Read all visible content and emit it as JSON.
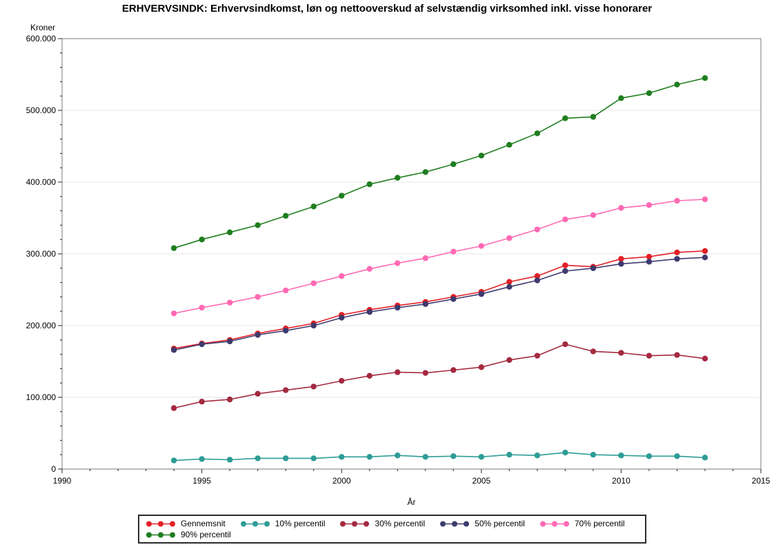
{
  "chart_data": {
    "type": "line",
    "title": "ERHVERVSINDK: Erhvervsindkomst, løn og nettooverskud af selvstændig virksomhed inkl. visse honorarer",
    "xlabel": "År",
    "ylabel": "Kroner",
    "xlim": [
      1990,
      2015
    ],
    "ylim": [
      0,
      600000
    ],
    "x_major_ticks": [
      1990,
      1995,
      2000,
      2005,
      2010,
      2015
    ],
    "x_tick_labels": [
      "1990",
      "1995",
      "2000",
      "2005",
      "2010",
      "2015"
    ],
    "x_minor_step": 1,
    "y_major_ticks": [
      0,
      100000,
      200000,
      300000,
      400000,
      500000,
      600000
    ],
    "y_tick_labels": [
      "0",
      "100.000",
      "200.000",
      "300.000",
      "400.000",
      "500.000",
      "600.000"
    ],
    "y_minor_step": 20000,
    "grid": "horizontal-major",
    "legend_position": "bottom",
    "marker": "filled-circle",
    "x": [
      1994,
      1995,
      1996,
      1997,
      1998,
      1999,
      2000,
      2001,
      2002,
      2003,
      2004,
      2005,
      2006,
      2007,
      2008,
      2009,
      2010,
      2011,
      2012,
      2013
    ],
    "series": [
      {
        "name": "Gennemsnit",
        "color": "#e31f26",
        "values": [
          168000,
          175000,
          180000,
          189000,
          196000,
          203000,
          215000,
          222000,
          228000,
          233000,
          240000,
          247000,
          261000,
          269000,
          284000,
          282000,
          293000,
          296000,
          302000,
          304000
        ]
      },
      {
        "name": "10% percentil",
        "color": "#2e9c96",
        "values": [
          12000,
          14000,
          13000,
          15000,
          15000,
          15000,
          17000,
          17000,
          19000,
          17000,
          18000,
          17000,
          20000,
          19000,
          23000,
          20000,
          19000,
          18000,
          18000,
          16000
        ]
      },
      {
        "name": "30% percentil",
        "color": "#a42a40",
        "values": [
          85000,
          94000,
          97000,
          105000,
          110000,
          115000,
          123000,
          130000,
          135000,
          134000,
          138000,
          142000,
          152000,
          158000,
          174000,
          164000,
          162000,
          158000,
          159000,
          154000
        ]
      },
      {
        "name": "50% percentil",
        "color": "#3c3b6e",
        "values": [
          166000,
          174000,
          178000,
          187000,
          193000,
          200000,
          211000,
          219000,
          225000,
          230000,
          237000,
          244000,
          254000,
          263000,
          276000,
          280000,
          286000,
          289000,
          293000,
          295000
        ]
      },
      {
        "name": "70% percentil",
        "color": "#ff69b4",
        "values": [
          217000,
          225000,
          232000,
          240000,
          249000,
          259000,
          269000,
          279000,
          287000,
          294000,
          303000,
          311000,
          322000,
          334000,
          348000,
          354000,
          364000,
          368000,
          374000,
          376000
        ]
      },
      {
        "name": "90% percentil",
        "color": "#1e7e1e",
        "values": [
          308000,
          320000,
          330000,
          340000,
          353000,
          366000,
          381000,
          397000,
          406000,
          414000,
          425000,
          437000,
          452000,
          468000,
          489000,
          491000,
          517000,
          524000,
          536000,
          545000
        ]
      }
    ]
  }
}
